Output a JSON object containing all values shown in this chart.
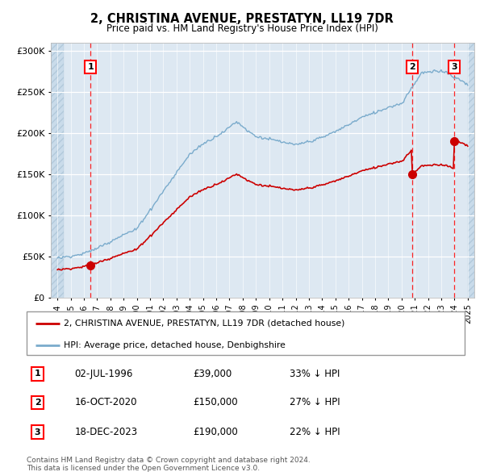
{
  "title": "2, CHRISTINA AVENUE, PRESTATYN, LL19 7DR",
  "subtitle": "Price paid vs. HM Land Registry's House Price Index (HPI)",
  "legend_line1": "2, CHRISTINA AVENUE, PRESTATYN, LL19 7DR (detached house)",
  "legend_line2": "HPI: Average price, detached house, Denbighshire",
  "sale_color": "#cc0000",
  "hpi_color": "#7aabcc",
  "background_plot": "#dde8f2",
  "background_hatch": "#c8d8e8",
  "ylim": [
    0,
    310000
  ],
  "yticks": [
    0,
    50000,
    100000,
    150000,
    200000,
    250000,
    300000
  ],
  "xlim_start": 1993.5,
  "xlim_end": 2025.5,
  "hatch_end": 1994.5,
  "future_hatch_start": 2025.0,
  "sales": [
    {
      "date": 1996.5,
      "price": 39000,
      "label": "1"
    },
    {
      "date": 2020.79,
      "price": 150000,
      "label": "2"
    },
    {
      "date": 2023.96,
      "price": 190000,
      "label": "3"
    }
  ],
  "table": [
    {
      "num": "1",
      "date": "02-JUL-1996",
      "price": "£39,000",
      "rel": "33% ↓ HPI"
    },
    {
      "num": "2",
      "date": "16-OCT-2020",
      "price": "£150,000",
      "rel": "27% ↓ HPI"
    },
    {
      "num": "3",
      "date": "18-DEC-2023",
      "price": "£190,000",
      "rel": "22% ↓ HPI"
    }
  ],
  "footnote": "Contains HM Land Registry data © Crown copyright and database right 2024.\nThis data is licensed under the Open Government Licence v3.0."
}
